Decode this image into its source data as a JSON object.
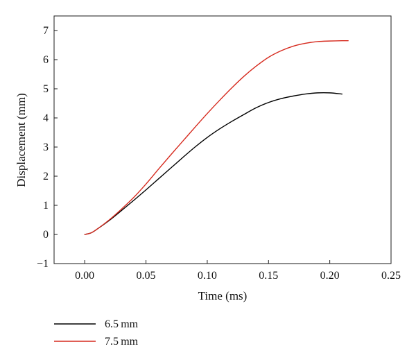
{
  "chart_data": {
    "type": "line",
    "title": "",
    "xlabel": "Time (ms)",
    "ylabel": "Displacement (mm)",
    "xlim": [
      -0.025,
      0.25
    ],
    "ylim": [
      -1,
      7.5
    ],
    "xticks": [
      0.0,
      0.05,
      0.1,
      0.15,
      0.2,
      0.25
    ],
    "xtick_labels": [
      "0.00",
      "0.05",
      "0.10",
      "0.15",
      "0.20",
      "0.25"
    ],
    "yticks": [
      -1,
      0,
      1,
      2,
      3,
      4,
      5,
      6,
      7
    ],
    "ytick_labels": [
      "−1",
      "0",
      "1",
      "2",
      "3",
      "4",
      "5",
      "6",
      "7"
    ],
    "grid": false,
    "legend_position": "bottom-left, below plot",
    "series": [
      {
        "name": "6.5 mm",
        "color": "#000000",
        "x": [
          0.0,
          0.005,
          0.01,
          0.02,
          0.03,
          0.04,
          0.05,
          0.06,
          0.07,
          0.08,
          0.09,
          0.1,
          0.11,
          0.12,
          0.13,
          0.14,
          0.15,
          0.16,
          0.17,
          0.18,
          0.19,
          0.2,
          0.21
        ],
        "y": [
          0.0,
          0.05,
          0.18,
          0.48,
          0.82,
          1.17,
          1.53,
          1.9,
          2.27,
          2.64,
          3.0,
          3.33,
          3.62,
          3.88,
          4.12,
          4.35,
          4.53,
          4.66,
          4.75,
          4.82,
          4.86,
          4.86,
          4.82
        ]
      },
      {
        "name": "7.5 mm",
        "color": "#d62a1e",
        "x": [
          0.0,
          0.005,
          0.01,
          0.02,
          0.03,
          0.04,
          0.05,
          0.06,
          0.07,
          0.08,
          0.09,
          0.1,
          0.11,
          0.12,
          0.13,
          0.14,
          0.15,
          0.16,
          0.17,
          0.18,
          0.19,
          0.2,
          0.21,
          0.215
        ],
        "y": [
          0.0,
          0.05,
          0.18,
          0.5,
          0.87,
          1.27,
          1.73,
          2.23,
          2.72,
          3.2,
          3.68,
          4.15,
          4.6,
          5.03,
          5.43,
          5.78,
          6.08,
          6.3,
          6.46,
          6.56,
          6.62,
          6.64,
          6.65,
          6.65
        ]
      }
    ]
  }
}
